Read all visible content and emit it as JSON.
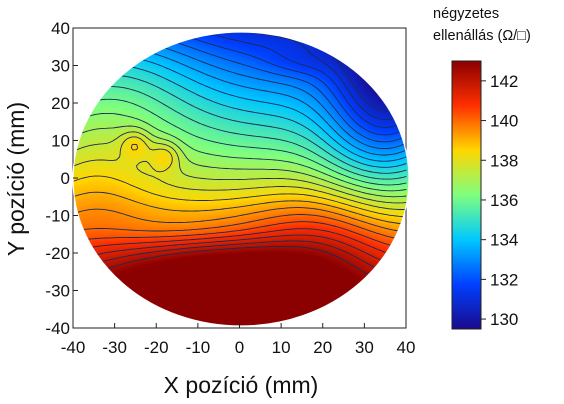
{
  "chart_data": {
    "type": "heatmap",
    "xlabel": "X pozíció (mm)",
    "ylabel": "Y pozíció (mm)",
    "colorbar_title": [
      "négyzetes",
      "ellenállás (Ω/□)"
    ],
    "xlim": [
      -40,
      40
    ],
    "ylim": [
      -40,
      40
    ],
    "xticks": [
      "-40",
      "-30",
      "-20",
      "-10",
      "0",
      "10",
      "20",
      "30",
      "40"
    ],
    "yticks": [
      "40",
      "30",
      "20",
      "10",
      "0",
      "-10",
      "-20",
      "-30",
      "-40"
    ],
    "xtick_values": [
      -40,
      -30,
      -20,
      -10,
      0,
      10,
      20,
      30,
      40
    ],
    "ytick_values": [
      40,
      30,
      20,
      10,
      0,
      -10,
      -20,
      -30,
      -40
    ],
    "color_range": [
      129.5,
      143
    ],
    "colorbar_ticks": [
      "142",
      "140",
      "138",
      "136",
      "134",
      "132",
      "130"
    ],
    "colorbar_tick_values": [
      142,
      140,
      138,
      136,
      134,
      132,
      130
    ],
    "colormap": [
      "#1a0a8c",
      "#0040ff",
      "#00c8ff",
      "#7fff7f",
      "#ffd700",
      "#ff3000",
      "#8b0000"
    ],
    "grid": false,
    "wafer_outline": "circle",
    "features": [
      {
        "type": "maximum",
        "x": -5,
        "y": -29,
        "value": 142.5
      },
      {
        "type": "minimum",
        "x": 35,
        "y": 25,
        "value": 130.5
      },
      {
        "type": "local-maximum",
        "x": -25,
        "y": 9,
        "value": 135.5
      },
      {
        "type": "local-maximum",
        "x": -18,
        "y": 6,
        "value": 135.5
      },
      {
        "type": "plateau",
        "x": -5,
        "y": 18,
        "value": 134.5
      },
      {
        "type": "plateau",
        "x": 12,
        "y": 31,
        "value": 134.3
      }
    ]
  }
}
